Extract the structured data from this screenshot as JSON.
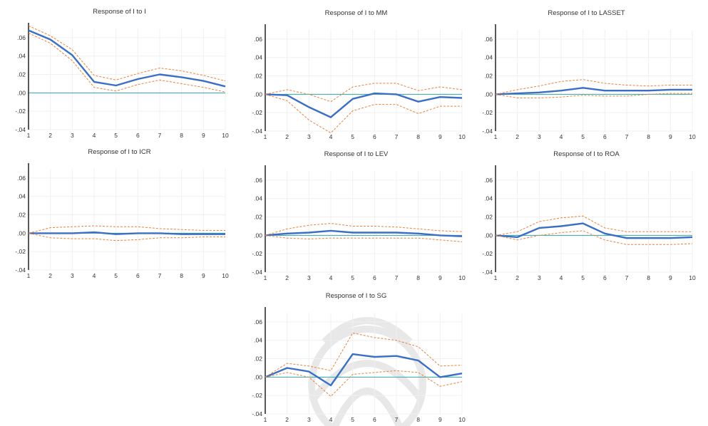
{
  "chart_data": [
    {
      "type": "line",
      "title": "Response of I to I",
      "x": [
        1,
        2,
        3,
        4,
        5,
        6,
        7,
        8,
        9,
        10
      ],
      "ylim": [
        -0.04,
        0.07
      ],
      "yticks": [
        ".06",
        ".04",
        ".02",
        ".00",
        "-.02",
        "-.04"
      ],
      "xticks": [
        "1",
        "2",
        "3",
        "4",
        "5",
        "6",
        "7",
        "8",
        "9",
        "10"
      ],
      "series": [
        {
          "role": "response",
          "values": [
            0.068,
            0.058,
            0.041,
            0.012,
            0.008,
            0.015,
            0.02,
            0.017,
            0.013,
            0.007
          ]
        },
        {
          "role": "upper",
          "values": [
            0.073,
            0.062,
            0.047,
            0.019,
            0.014,
            0.021,
            0.027,
            0.024,
            0.019,
            0.013
          ]
        },
        {
          "role": "lower",
          "values": [
            0.065,
            0.054,
            0.035,
            0.006,
            0.002,
            0.009,
            0.014,
            0.01,
            0.006,
            0.001
          ]
        }
      ]
    },
    {
      "type": "line",
      "title": "Response of I to MM",
      "x": [
        1,
        2,
        3,
        4,
        5,
        6,
        7,
        8,
        9,
        10
      ],
      "ylim": [
        -0.04,
        0.07
      ],
      "yticks": [
        ".06",
        ".04",
        ".02",
        ".00",
        "-.02",
        "-.04"
      ],
      "xticks": [
        "1",
        "2",
        "3",
        "4",
        "5",
        "6",
        "7",
        "8",
        "9",
        "10"
      ],
      "series": [
        {
          "role": "response",
          "values": [
            0.0,
            -0.001,
            -0.014,
            -0.025,
            -0.005,
            0.001,
            0.0,
            -0.008,
            -0.003,
            -0.004
          ]
        },
        {
          "role": "upper",
          "values": [
            0.0,
            0.005,
            0.0,
            -0.008,
            0.008,
            0.012,
            0.012,
            0.004,
            0.008,
            0.005
          ]
        },
        {
          "role": "lower",
          "values": [
            0.0,
            -0.007,
            -0.028,
            -0.042,
            -0.018,
            -0.011,
            -0.011,
            -0.021,
            -0.013,
            -0.013
          ]
        }
      ]
    },
    {
      "type": "line",
      "title": "Response of I to LASSET",
      "x": [
        1,
        2,
        3,
        4,
        5,
        6,
        7,
        8,
        9,
        10
      ],
      "ylim": [
        -0.04,
        0.07
      ],
      "yticks": [
        ".06",
        ".04",
        ".02",
        ".00",
        "-.02",
        "-.04"
      ],
      "xticks": [
        "1",
        "2",
        "3",
        "4",
        "5",
        "6",
        "7",
        "8",
        "9",
        "10"
      ],
      "series": [
        {
          "role": "response",
          "values": [
            0.0,
            0.001,
            0.002,
            0.004,
            0.007,
            0.004,
            0.004,
            0.004,
            0.005,
            0.005
          ]
        },
        {
          "role": "upper",
          "values": [
            0.0,
            0.005,
            0.009,
            0.014,
            0.016,
            0.012,
            0.01,
            0.009,
            0.01,
            0.01
          ]
        },
        {
          "role": "lower",
          "values": [
            0.0,
            -0.004,
            -0.004,
            -0.003,
            -0.001,
            -0.002,
            -0.002,
            0.0,
            0.001,
            0.001
          ]
        }
      ]
    },
    {
      "type": "line",
      "title": "Response of I to ICR",
      "x": [
        1,
        2,
        3,
        4,
        5,
        6,
        7,
        8,
        9,
        10
      ],
      "ylim": [
        -0.04,
        0.07
      ],
      "yticks": [
        ".06",
        ".04",
        ".02",
        ".00",
        "-.02",
        "-.04"
      ],
      "xticks": [
        "1",
        "2",
        "3",
        "4",
        "5",
        "6",
        "7",
        "8",
        "9",
        "10"
      ],
      "series": [
        {
          "role": "response",
          "values": [
            0.0,
            0.0,
            0.0,
            0.001,
            -0.001,
            0.0,
            0.0,
            -0.001,
            -0.001,
            -0.001
          ]
        },
        {
          "role": "upper",
          "values": [
            0.0,
            0.006,
            0.007,
            0.008,
            0.007,
            0.007,
            0.005,
            0.004,
            0.003,
            0.003
          ]
        },
        {
          "role": "lower",
          "values": [
            0.0,
            -0.005,
            -0.006,
            -0.006,
            -0.008,
            -0.007,
            -0.005,
            -0.005,
            -0.004,
            -0.004
          ]
        }
      ]
    },
    {
      "type": "line",
      "title": "Response of I to LEV",
      "x": [
        1,
        2,
        3,
        4,
        5,
        6,
        7,
        8,
        9,
        10
      ],
      "ylim": [
        -0.04,
        0.07
      ],
      "yticks": [
        ".06",
        ".04",
        ".02",
        ".00",
        "-.02",
        "-.04"
      ],
      "xticks": [
        "1",
        "2",
        "3",
        "4",
        "5",
        "6",
        "7",
        "8",
        "9",
        "10"
      ],
      "series": [
        {
          "role": "response",
          "values": [
            0.0,
            0.002,
            0.003,
            0.005,
            0.003,
            0.003,
            0.003,
            0.002,
            0.0,
            -0.001
          ]
        },
        {
          "role": "upper",
          "values": [
            0.0,
            0.007,
            0.011,
            0.013,
            0.01,
            0.01,
            0.009,
            0.007,
            0.005,
            0.004
          ]
        },
        {
          "role": "lower",
          "values": [
            0.0,
            -0.003,
            -0.004,
            -0.003,
            -0.003,
            -0.003,
            -0.003,
            -0.003,
            -0.005,
            -0.007
          ]
        }
      ]
    },
    {
      "type": "line",
      "title": "Response of I to ROA",
      "x": [
        1,
        2,
        3,
        4,
        5,
        6,
        7,
        8,
        9,
        10
      ],
      "ylim": [
        -0.04,
        0.07
      ],
      "yticks": [
        ".06",
        ".04",
        ".02",
        ".00",
        "-.02",
        "-.04"
      ],
      "xticks": [
        "1",
        "2",
        "3",
        "4",
        "5",
        "6",
        "7",
        "8",
        "9",
        "10"
      ],
      "series": [
        {
          "role": "response",
          "values": [
            0.0,
            -0.002,
            0.008,
            0.01,
            0.013,
            0.002,
            -0.003,
            -0.003,
            -0.003,
            -0.002
          ]
        },
        {
          "role": "upper",
          "values": [
            0.0,
            0.004,
            0.015,
            0.019,
            0.021,
            0.008,
            0.004,
            0.004,
            0.004,
            0.004
          ]
        },
        {
          "role": "lower",
          "values": [
            0.0,
            -0.005,
            0.0,
            0.003,
            0.005,
            -0.005,
            -0.01,
            -0.01,
            -0.01,
            -0.009
          ]
        }
      ]
    },
    {
      "type": "line",
      "title": "Response of I to SG",
      "x": [
        1,
        2,
        3,
        4,
        5,
        6,
        7,
        8,
        9,
        10
      ],
      "ylim": [
        -0.04,
        0.07
      ],
      "yticks": [
        ".06",
        ".04",
        ".02",
        ".00",
        "-.02",
        "-.04"
      ],
      "xticks": [
        "1",
        "2",
        "3",
        "4",
        "5",
        "6",
        "7",
        "8",
        "9",
        "10"
      ],
      "series": [
        {
          "role": "response",
          "values": [
            0.0,
            0.01,
            0.006,
            -0.009,
            0.025,
            0.022,
            0.023,
            0.018,
            0.0,
            0.004
          ]
        },
        {
          "role": "upper",
          "values": [
            0.0,
            0.015,
            0.012,
            0.007,
            0.048,
            0.043,
            0.04,
            0.033,
            0.012,
            0.013
          ]
        },
        {
          "role": "lower",
          "values": [
            0.0,
            0.005,
            0.0,
            -0.021,
            0.003,
            0.005,
            0.007,
            0.005,
            -0.01,
            -0.005
          ]
        }
      ]
    }
  ],
  "colors": {
    "response": "#3a6fc4",
    "band": "#e8823c",
    "zero_line": "#2fa8a8",
    "axis": "#111111"
  }
}
